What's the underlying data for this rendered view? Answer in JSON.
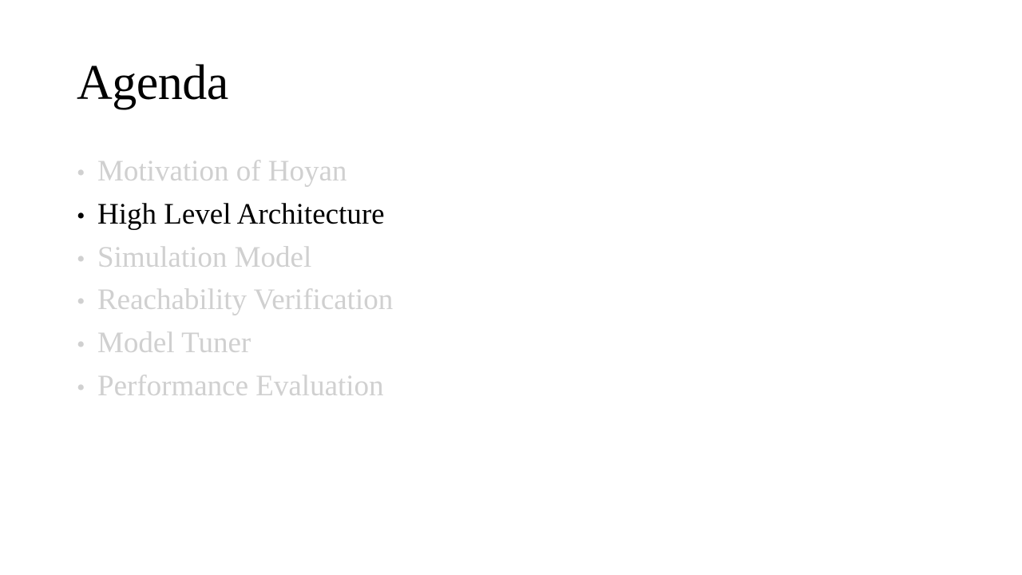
{
  "slide": {
    "title": "Agenda",
    "bullet_glyph": "•",
    "colors": {
      "active": "#000000",
      "dimmed": "#d0d0d0",
      "background": "#ffffff"
    },
    "items": [
      {
        "label": "Motivation of Hoyan",
        "state": "dimmed"
      },
      {
        "label": "High Level Architecture",
        "state": "active"
      },
      {
        "label": "Simulation Model",
        "state": "dimmed"
      },
      {
        "label": "Reachability Verification",
        "state": "dimmed"
      },
      {
        "label": "Model Tuner",
        "state": "dimmed"
      },
      {
        "label": "Performance Evaluation",
        "state": "dimmed"
      }
    ]
  }
}
